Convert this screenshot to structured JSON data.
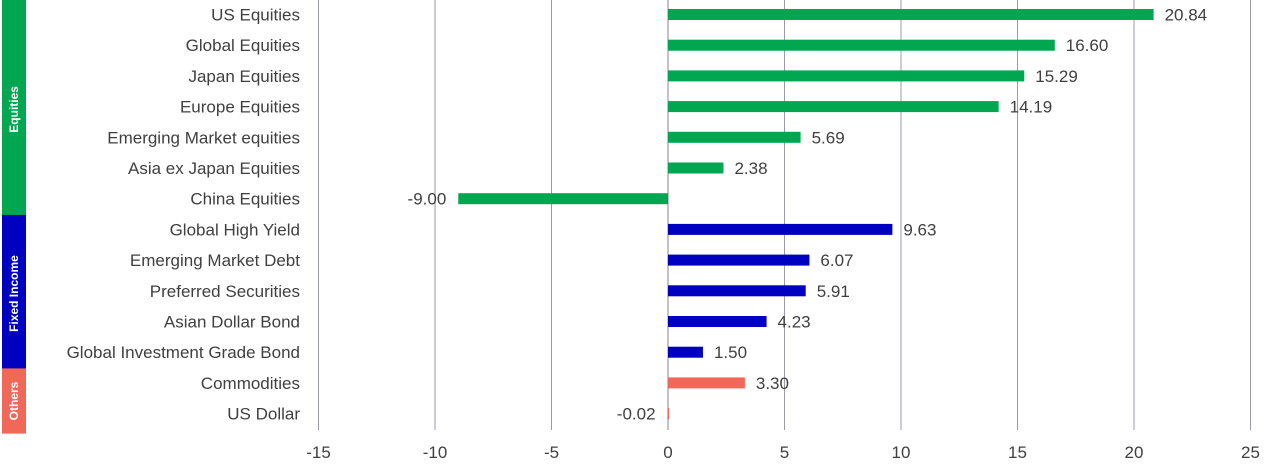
{
  "chart_data": {
    "type": "bar",
    "orientation": "horizontal",
    "categories": [
      "US Equities",
      "Global Equities",
      "Japan Equities",
      "Europe Equities",
      "Emerging Market equities",
      "Asia ex Japan Equities",
      "China Equities",
      "Global High Yield",
      "Emerging Market Debt",
      "Preferred Securities",
      "Asian Dollar Bond",
      "Global Investment Grade Bond",
      "Commodities",
      "US Dollar"
    ],
    "values": [
      20.84,
      16.6,
      15.29,
      14.19,
      5.69,
      2.38,
      -9.0,
      9.63,
      6.07,
      5.91,
      4.23,
      1.5,
      3.3,
      -0.02
    ],
    "value_labels": [
      "20.84",
      "16.60",
      "15.29",
      "14.19",
      "5.69",
      "2.38",
      "-9.00",
      "9.63",
      "6.07",
      "5.91",
      "4.23",
      "1.50",
      "3.30",
      "-0.02"
    ],
    "groups": [
      {
        "name": "Equities",
        "start": 0,
        "end": 6,
        "color": "#00a650"
      },
      {
        "name": "Fixed Income",
        "start": 7,
        "end": 11,
        "color": "#0000c0"
      },
      {
        "name": "Others",
        "start": 12,
        "end": 13,
        "color": "#f06857"
      }
    ],
    "xlim": [
      -15,
      25
    ],
    "xticks": [
      "-15",
      "-10",
      "-5",
      "0",
      "5",
      "10",
      "15",
      "20",
      "25"
    ],
    "grid": true,
    "title": "",
    "xlabel": "",
    "ylabel": ""
  }
}
